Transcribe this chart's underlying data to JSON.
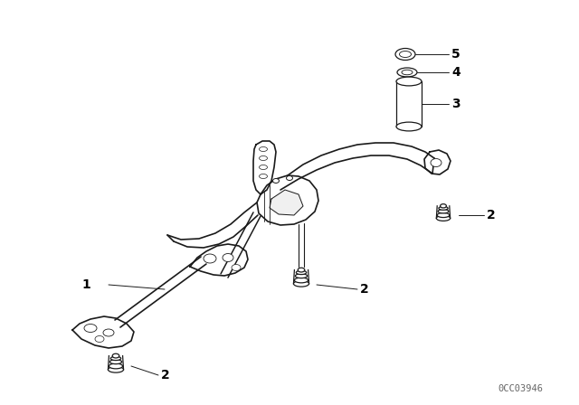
{
  "background_color": "#ffffff",
  "line_color": "#1a1a1a",
  "label_color": "#000000",
  "watermark_text": "0CC03946",
  "watermark_color": "#666666",
  "watermark_fontsize": 7.5,
  "fig_width": 6.4,
  "fig_height": 4.48,
  "dpi": 100,
  "callout_fontsize": 10,
  "callout_lw": 0.7,
  "part_lw": 0.9,
  "main_lw": 1.2
}
